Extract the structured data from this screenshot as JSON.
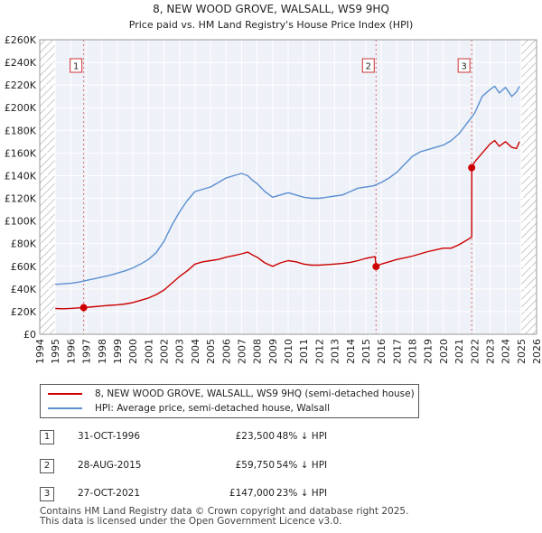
{
  "chart_data": {
    "type": "line",
    "title": "8, NEW WOOD GROVE, WALSALL, WS9 9HQ",
    "subtitle": "Price paid vs. HM Land Registry's House Price Index (HPI)",
    "xlim": [
      1994,
      2026
    ],
    "ylim": [
      0,
      260000
    ],
    "x_ticks": [
      "1994",
      "1995",
      "1996",
      "1997",
      "1998",
      "1999",
      "2000",
      "2001",
      "2002",
      "2003",
      "2004",
      "2005",
      "2006",
      "2007",
      "2008",
      "2009",
      "2010",
      "2011",
      "2012",
      "2013",
      "2014",
      "2015",
      "2016",
      "2017",
      "2018",
      "2019",
      "2020",
      "2021",
      "2022",
      "2023",
      "2024",
      "2025",
      "2026"
    ],
    "y_ticks": [
      {
        "value": 0,
        "label": "£0"
      },
      {
        "value": 20000,
        "label": "£20K"
      },
      {
        "value": 40000,
        "label": "£40K"
      },
      {
        "value": 60000,
        "label": "£60K"
      },
      {
        "value": 80000,
        "label": "£80K"
      },
      {
        "value": 100000,
        "label": "£100K"
      },
      {
        "value": 120000,
        "label": "£120K"
      },
      {
        "value": 140000,
        "label": "£140K"
      },
      {
        "value": 160000,
        "label": "£160K"
      },
      {
        "value": 180000,
        "label": "£180K"
      },
      {
        "value": 200000,
        "label": "£200K"
      },
      {
        "value": 220000,
        "label": "£220K"
      },
      {
        "value": 240000,
        "label": "£240K"
      },
      {
        "value": 260000,
        "label": "£260K"
      }
    ],
    "hatched_ranges": [
      [
        1994,
        1995
      ],
      [
        2025,
        2026
      ]
    ],
    "series": [
      {
        "name": "8, NEW WOOD GROVE, WALSALL, WS9 9HQ (semi-detached house)",
        "color": "#cc0000",
        "x": [
          1995.0,
          1995.5,
          1996.0,
          1996.5,
          1996.83,
          1997.5,
          1998.0,
          1998.5,
          1999.0,
          1999.5,
          2000.0,
          2000.5,
          2001.0,
          2001.5,
          2002.0,
          2002.5,
          2003.0,
          2003.5,
          2004.0,
          2004.5,
          2005.0,
          2005.5,
          2006.0,
          2006.5,
          2007.0,
          2007.4,
          2007.7,
          2008.0,
          2008.5,
          2009.0,
          2009.5,
          2010.0,
          2010.5,
          2011.0,
          2011.5,
          2012.0,
          2012.5,
          2013.0,
          2013.5,
          2014.0,
          2014.5,
          2015.0,
          2015.6,
          2015.66,
          2016.0,
          2016.5,
          2017.0,
          2017.5,
          2018.0,
          2018.5,
          2019.0,
          2019.5,
          2020.0,
          2020.5,
          2021.0,
          2021.5,
          2021.82,
          2021.83,
          2022.0,
          2022.5,
          2023.0,
          2023.3,
          2023.6,
          2024.0,
          2024.4,
          2024.7,
          2024.9
        ],
        "y": [
          22700,
          22500,
          22800,
          23300,
          23500,
          24300,
          25000,
          25500,
          26000,
          26700,
          28000,
          30000,
          32000,
          35000,
          39000,
          45000,
          51000,
          56000,
          62000,
          64000,
          65000,
          66000,
          68000,
          69500,
          71000,
          72500,
          70000,
          68000,
          63000,
          60000,
          63000,
          65000,
          64000,
          62000,
          61000,
          61000,
          61500,
          62000,
          62500,
          63500,
          65000,
          67000,
          68500,
          59750,
          62000,
          64000,
          66000,
          67500,
          69000,
          71000,
          73000,
          74500,
          76000,
          76000,
          79000,
          83000,
          86000,
          147000,
          152000,
          160000,
          168000,
          171000,
          166000,
          170000,
          165000,
          164000,
          170000
        ]
      },
      {
        "name": "HPI: Average price, semi-detached house, Walsall",
        "color": "#5b8fd1",
        "x": [
          1995.0,
          1995.5,
          1996.0,
          1996.5,
          1997.0,
          1997.5,
          1998.0,
          1998.5,
          1999.0,
          1999.5,
          2000.0,
          2000.5,
          2001.0,
          2001.5,
          2002.0,
          2002.5,
          2003.0,
          2003.5,
          2004.0,
          2004.5,
          2005.0,
          2005.5,
          2006.0,
          2006.5,
          2007.0,
          2007.4,
          2007.7,
          2008.0,
          2008.5,
          2009.0,
          2009.5,
          2010.0,
          2010.5,
          2011.0,
          2011.5,
          2012.0,
          2012.5,
          2013.0,
          2013.5,
          2014.0,
          2014.5,
          2015.0,
          2015.5,
          2016.0,
          2016.5,
          2017.0,
          2017.5,
          2018.0,
          2018.5,
          2019.0,
          2019.5,
          2020.0,
          2020.5,
          2021.0,
          2021.5,
          2022.0,
          2022.5,
          2023.0,
          2023.3,
          2023.6,
          2024.0,
          2024.4,
          2024.7,
          2024.9
        ],
        "y": [
          44000,
          44500,
          45000,
          46000,
          47500,
          49000,
          50500,
          52000,
          54000,
          56000,
          58500,
          62000,
          66000,
          72000,
          82000,
          96000,
          108000,
          118000,
          126000,
          128000,
          130000,
          134000,
          138000,
          140000,
          142000,
          140000,
          136000,
          133000,
          126000,
          121000,
          123000,
          125000,
          123000,
          121000,
          120000,
          120000,
          121000,
          122000,
          123000,
          126000,
          129000,
          130000,
          131000,
          134000,
          138000,
          143000,
          150000,
          157000,
          161000,
          163000,
          165000,
          167000,
          171000,
          177000,
          186000,
          195000,
          210000,
          216000,
          219000,
          213000,
          218000,
          210000,
          214000,
          219000
        ]
      }
    ],
    "sales": [
      {
        "marker": "1",
        "x": 1996.83,
        "y": 23500,
        "date": "31-OCT-1996",
        "price": "£23,500",
        "hpi": "48% ↓ HPI"
      },
      {
        "marker": "2",
        "x": 2015.66,
        "y": 59750,
        "date": "28-AUG-2015",
        "price": "£59,750",
        "hpi": "54% ↓ HPI"
      },
      {
        "marker": "3",
        "x": 2021.82,
        "y": 147000,
        "date": "27-OCT-2021",
        "price": "£147,000",
        "hpi": "23% ↓ HPI"
      }
    ]
  },
  "footer": {
    "line1": "Contains HM Land Registry data © Crown copyright and database right 2025.",
    "line2": "This data is licensed under the Open Government Licence v3.0."
  }
}
